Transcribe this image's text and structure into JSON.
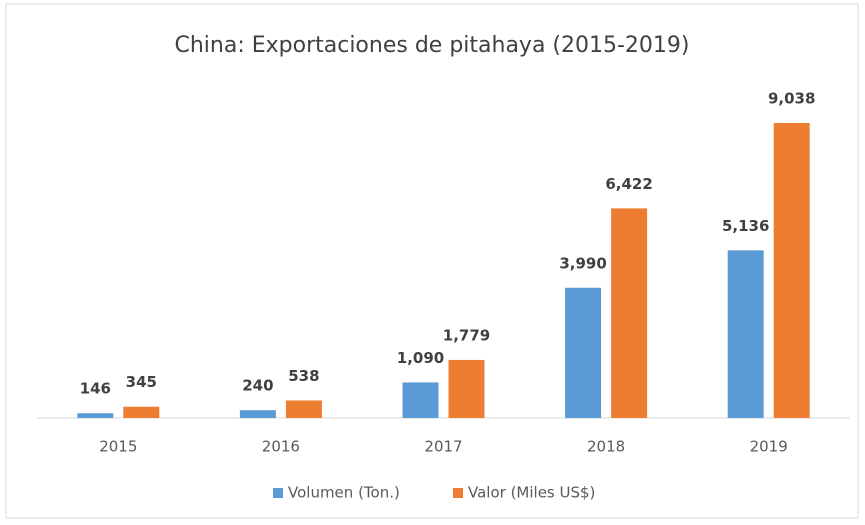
{
  "chart_data": {
    "type": "bar",
    "title": "China: Exportaciones de pitahaya (2015-2019)",
    "categories": [
      "2015",
      "2016",
      "2017",
      "2018",
      "2019"
    ],
    "series": [
      {
        "name": "Volumen (Ton.)",
        "color": "#5b9bd5",
        "values": [
          146,
          240,
          1090,
          3990,
          5136
        ],
        "value_labels": [
          "146",
          "240",
          "1,090",
          "3,990",
          "5,136"
        ]
      },
      {
        "name": "Valor (Miles US$)",
        "color": "#ed7d31",
        "values": [
          345,
          538,
          1779,
          6422,
          9038
        ],
        "value_labels": [
          "345",
          "538",
          "1,779",
          "6,422",
          "9,038"
        ]
      }
    ],
    "legend": "bottom"
  }
}
